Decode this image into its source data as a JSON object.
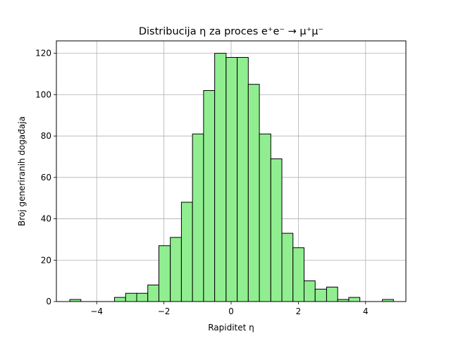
{
  "chart_data": {
    "type": "bar",
    "subtype": "histogram",
    "title": "Distribucija η za proces e⁺e⁻ → μ⁺μ⁻",
    "xlabel": "Rapiditet η",
    "ylabel": "Broj generiranih događaja",
    "xlim": [
      -5.2,
      5.2
    ],
    "ylim": [
      0,
      126
    ],
    "grid": true,
    "bar_color": "#90ee90",
    "edge_color": "#000000",
    "xticks": [
      -4,
      -2,
      0,
      2,
      4
    ],
    "xtick_labels": [
      "−4",
      "−2",
      "0",
      "2",
      "4"
    ],
    "yticks": [
      0,
      20,
      40,
      60,
      80,
      100,
      120
    ],
    "ytick_labels": [
      "0",
      "20",
      "40",
      "60",
      "80",
      "100",
      "120"
    ],
    "bins": [
      {
        "x0": -4.8,
        "x1": -4.47,
        "count": 1
      },
      {
        "x0": -4.47,
        "x1": -4.14,
        "count": 0
      },
      {
        "x0": -4.14,
        "x1": -3.81,
        "count": 0
      },
      {
        "x0": -3.81,
        "x1": -3.47,
        "count": 0
      },
      {
        "x0": -3.47,
        "x1": -3.14,
        "count": 2
      },
      {
        "x0": -3.14,
        "x1": -2.81,
        "count": 4
      },
      {
        "x0": -2.81,
        "x1": -2.48,
        "count": 4
      },
      {
        "x0": -2.48,
        "x1": -2.15,
        "count": 8
      },
      {
        "x0": -2.15,
        "x1": -1.81,
        "count": 27
      },
      {
        "x0": -1.81,
        "x1": -1.48,
        "count": 31
      },
      {
        "x0": -1.48,
        "x1": -1.15,
        "count": 48
      },
      {
        "x0": -1.15,
        "x1": -0.82,
        "count": 81
      },
      {
        "x0": -0.82,
        "x1": -0.49,
        "count": 102
      },
      {
        "x0": -0.49,
        "x1": -0.15,
        "count": 120
      },
      {
        "x0": -0.15,
        "x1": 0.18,
        "count": 118
      },
      {
        "x0": 0.18,
        "x1": 0.51,
        "count": 118
      },
      {
        "x0": 0.51,
        "x1": 0.84,
        "count": 105
      },
      {
        "x0": 0.84,
        "x1": 1.18,
        "count": 81
      },
      {
        "x0": 1.18,
        "x1": 1.51,
        "count": 69
      },
      {
        "x0": 1.51,
        "x1": 1.84,
        "count": 33
      },
      {
        "x0": 1.84,
        "x1": 2.17,
        "count": 26
      },
      {
        "x0": 2.17,
        "x1": 2.5,
        "count": 10
      },
      {
        "x0": 2.5,
        "x1": 2.84,
        "count": 6
      },
      {
        "x0": 2.84,
        "x1": 3.17,
        "count": 7
      },
      {
        "x0": 3.17,
        "x1": 3.5,
        "count": 1
      },
      {
        "x0": 3.5,
        "x1": 3.83,
        "count": 2
      },
      {
        "x0": 3.83,
        "x1": 4.16,
        "count": 0
      },
      {
        "x0": 4.16,
        "x1": 4.5,
        "count": 0
      },
      {
        "x0": 4.5,
        "x1": 4.83,
        "count": 1
      }
    ]
  }
}
